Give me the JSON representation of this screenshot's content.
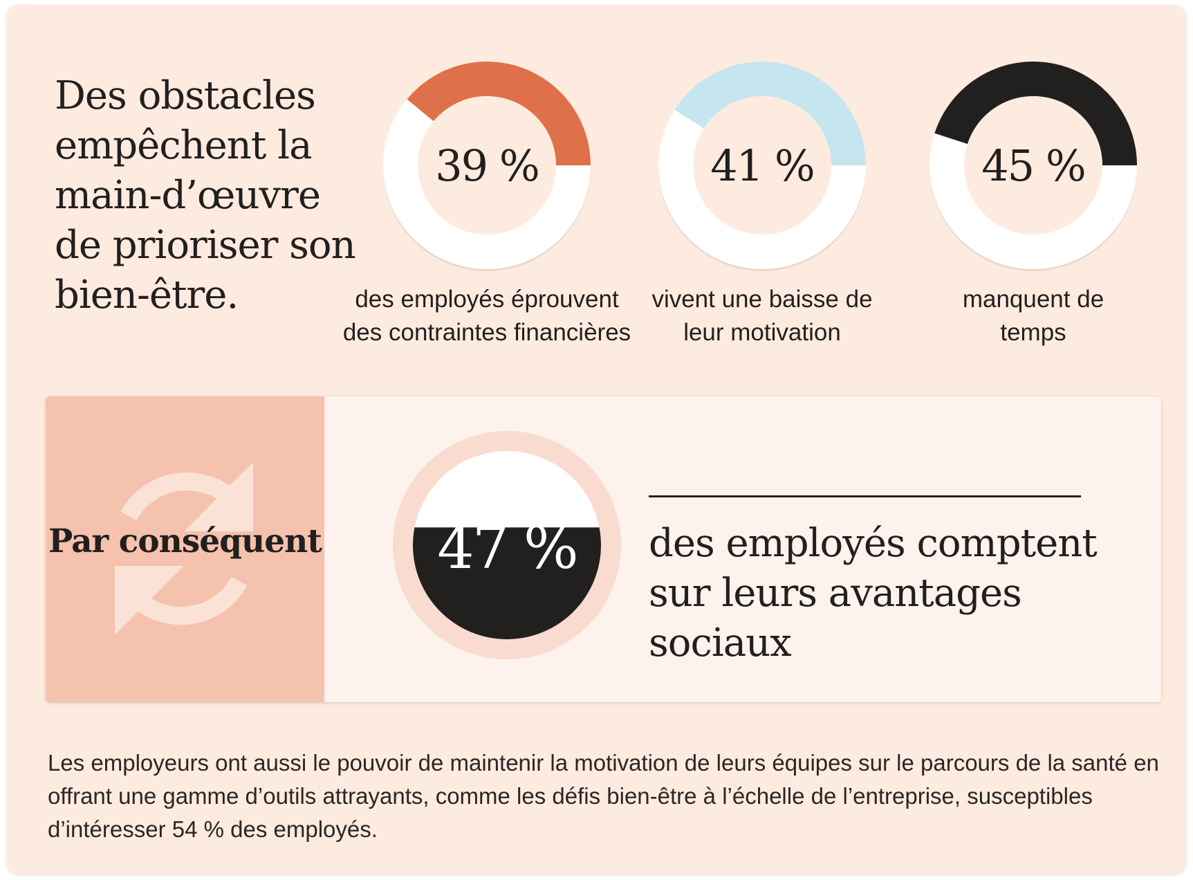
{
  "headline": "Des obstacles empêchent la main-d’œuvre de prioriser son bien-être.",
  "colors": {
    "background": "#fdebdf",
    "ring_track": "#ffffff",
    "ring_center": "#fdebdf",
    "orange": "#de7149",
    "light_blue": "#c5e5ef",
    "black": "#221f1f",
    "panel_left": "#f4c2ad",
    "panel_bg": "#fdf2ec",
    "big_ring": "#f9dbcf"
  },
  "chart_data": [
    {
      "type": "pie",
      "variant": "donut",
      "value": 39,
      "max": 100,
      "label": "39 %",
      "caption": "des employés éprouvent des contraintes financières",
      "color": "#de7149"
    },
    {
      "type": "pie",
      "variant": "donut",
      "value": 41,
      "max": 100,
      "label": "41 %",
      "caption": "vivent une baisse de leur motivation",
      "color": "#c5e5ef"
    },
    {
      "type": "pie",
      "variant": "donut",
      "value": 45,
      "max": 100,
      "label": "45 %",
      "caption": "manquent de temps",
      "color": "#221f1f"
    },
    {
      "type": "pie",
      "variant": "filled-circle",
      "value": 47,
      "max": 100,
      "label": "47 %",
      "caption": "des employés comptent sur leurs avantages sociaux",
      "color": "#221f1f"
    }
  ],
  "panel": {
    "label": "Par conséquent",
    "icon": "refresh-icon"
  },
  "footer": "Les employeurs ont aussi le pouvoir de maintenir la motivation de leurs équipes sur le parcours de la santé en offrant une gamme d’outils attrayants, comme les défis bien-être à l’échelle de l’entreprise, susceptibles d’intéresser 54 % des employés."
}
